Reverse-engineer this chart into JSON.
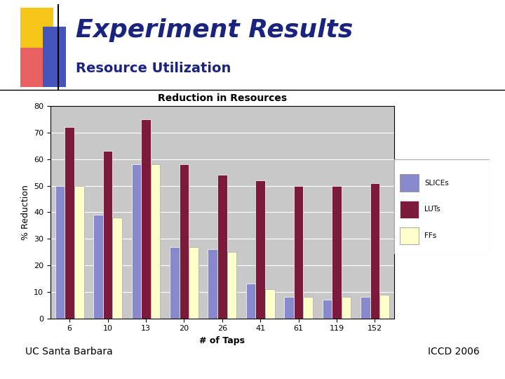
{
  "title": "Experiment Results",
  "subtitle": "Resource Utilization",
  "chart_title": "Reduction in Resources",
  "xlabel": "# of Taps",
  "ylabel": "% Reduction",
  "categories": [
    6,
    10,
    13,
    20,
    26,
    41,
    61,
    119,
    152
  ],
  "slices_values": [
    50,
    39,
    58,
    27,
    26,
    13,
    8,
    7,
    8
  ],
  "luts_values": [
    72,
    63,
    75,
    58,
    54,
    52,
    50,
    50,
    51
  ],
  "ffs_values": [
    50,
    38,
    58,
    27,
    25,
    11,
    8,
    8,
    9
  ],
  "slices_color": "#8888cc",
  "luts_color": "#7b1a3b",
  "ffs_color": "#ffffcc",
  "chart_bg": "#c8c8c8",
  "ylim": [
    0,
    80
  ],
  "yticks": [
    0,
    10,
    20,
    30,
    40,
    50,
    60,
    70,
    80
  ],
  "title_color": "#1a237e",
  "subtitle_color": "#1a237e",
  "footer_left": "UC Santa Barbara",
  "footer_right": "ICCD 2006",
  "bar_width": 0.25,
  "yellow_color": "#f5c518",
  "red_color": "#e86060",
  "blue_color": "#4455bb"
}
